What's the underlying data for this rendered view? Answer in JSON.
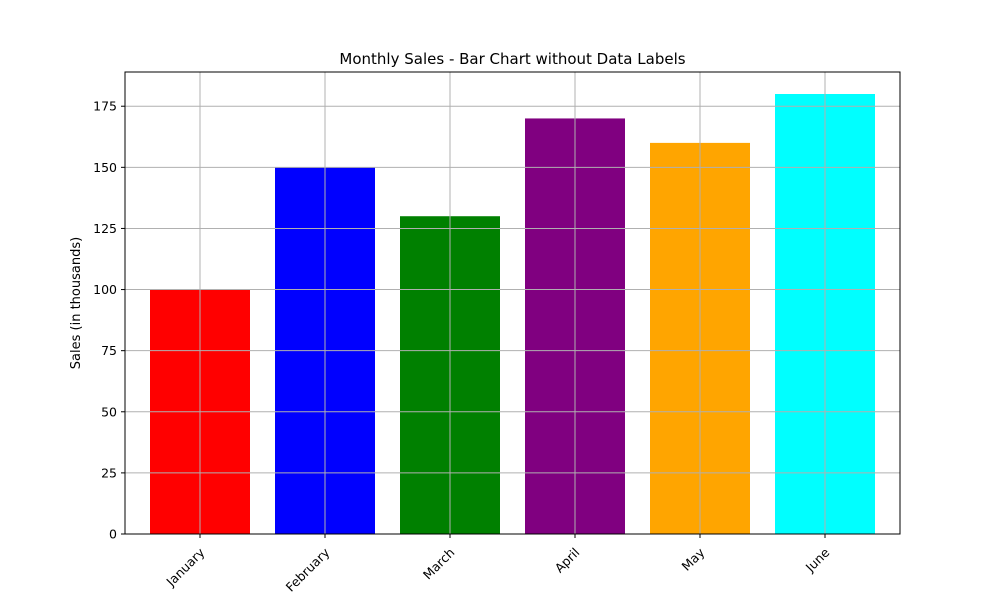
{
  "chart_data": {
    "type": "bar",
    "title": "Monthly Sales - Bar Chart without Data Labels",
    "xlabel": "",
    "ylabel": "Sales (in thousands)",
    "categories": [
      "January",
      "February",
      "March",
      "April",
      "May",
      "June"
    ],
    "values": [
      100,
      150,
      130,
      170,
      160,
      180
    ],
    "colors": [
      "#ff0000",
      "#0000ff",
      "#008000",
      "#800080",
      "#ffa500",
      "#00ffff"
    ],
    "ylim": [
      0,
      189
    ],
    "yticks": [
      0,
      25,
      50,
      75,
      100,
      125,
      150,
      175
    ],
    "grid": true,
    "legend": "none"
  }
}
